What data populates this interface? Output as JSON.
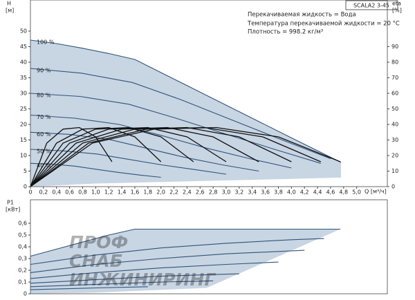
{
  "watermark": [
    "ПРОФ",
    "СНАБ",
    "ИНЖИНИРИНГ"
  ],
  "chart_data": [
    {
      "type": "line",
      "title": "SCALA2 3-45",
      "annotations": [
        "Перекачиваемая жидкость = Вода",
        "Температура перекачиваемой жидкости = 20 °C",
        "Плотность = 998.2 кг/м³"
      ],
      "ylabel": "H",
      "yunit": "[м]",
      "y2label": "eta",
      "y2unit": "[%]",
      "xlabel": "Q [м³/ч]",
      "xlim": [
        0,
        5.47
      ],
      "xticks": [
        0,
        {
          "value": 0.2,
          "label": "0,2"
        },
        {
          "value": 0.4,
          "label": "0,4"
        },
        {
          "value": 0.6,
          "label": "0,6"
        },
        {
          "value": 0.8,
          "label": "0,8"
        },
        {
          "value": 1.0,
          "label": "1,0"
        },
        {
          "value": 1.2,
          "label": "1,2"
        },
        {
          "value": 1.4,
          "label": "1,4"
        },
        {
          "value": 1.6,
          "label": "1,6"
        },
        {
          "value": 1.8,
          "label": "1,8"
        },
        {
          "value": 2.0,
          "label": "2,0"
        },
        {
          "value": 2.2,
          "label": "2,2"
        },
        {
          "value": 2.4,
          "label": "2,4"
        },
        {
          "value": 2.6,
          "label": "2,6"
        },
        {
          "value": 2.8,
          "label": "2,8"
        },
        {
          "value": 3.0,
          "label": "3,0"
        },
        {
          "value": 3.2,
          "label": "3,2"
        },
        {
          "value": 3.4,
          "label": "3,4"
        },
        {
          "value": 3.6,
          "label": "3,6"
        },
        {
          "value": 3.8,
          "label": "3,8"
        },
        {
          "value": 4.0,
          "label": "4,0"
        },
        {
          "value": 4.2,
          "label": "4,2"
        },
        {
          "value": 4.4,
          "label": "4,4"
        },
        {
          "value": 4.6,
          "label": "4,6"
        },
        {
          "value": 4.8,
          "label": "4,8"
        },
        {
          "value": 5.0,
          "label": "5,0"
        }
      ],
      "ylim": [
        0,
        60
      ],
      "yticks": [
        0,
        5,
        10,
        15,
        20,
        25,
        30,
        35,
        40,
        45,
        50
      ],
      "y2lim": [
        0,
        120
      ],
      "y2ticks": [
        0,
        10,
        20,
        30,
        40,
        50,
        60,
        70,
        80,
        90
      ],
      "envelope": {
        "color": "#c8d5e3",
        "x": [
          0,
          0.4,
          0.8,
          1.2,
          1.6,
          4.76,
          4.76,
          4.0,
          3.0,
          2.0,
          1.0,
          0
        ],
        "values": [
          47.1,
          46,
          44.5,
          42.8,
          40.9,
          7.8,
          2.9,
          2.5,
          2.0,
          1.5,
          1.0,
          0
        ]
      },
      "series": [
        {
          "name": "100 %",
          "color": "#2f5379",
          "x": [
            0,
            0.4,
            0.8,
            1.2,
            1.6,
            2.4,
            3.2,
            4.0,
            4.76
          ],
          "values": [
            47.1,
            46,
            44.5,
            42.8,
            40.9,
            32.5,
            24.1,
            15.7,
            7.8
          ]
        },
        {
          "name": "90 %",
          "color": "#2f5379",
          "x": [
            0,
            0.78,
            1.56,
            2.3,
            3.08,
            3.86,
            4.6
          ],
          "values": [
            38,
            36.5,
            33.5,
            28,
            21.5,
            15,
            9
          ]
        },
        {
          "name": "80 %",
          "color": "#2f5379",
          "x": [
            0,
            0.76,
            1.51,
            2.23,
            2.98,
            3.74,
            4.45
          ],
          "values": [
            30,
            29,
            26.5,
            22,
            17,
            12,
            7.5
          ]
        },
        {
          "name": "70 %",
          "color": "#2f5379",
          "x": [
            0,
            0.68,
            1.36,
            2.0,
            2.68,
            3.36,
            4.0
          ],
          "values": [
            23,
            22,
            20,
            16.5,
            12.5,
            9,
            6
          ]
        },
        {
          "name": "60 %",
          "color": "#2f5379",
          "x": [
            0,
            0.6,
            1.2,
            1.75,
            2.35,
            2.94,
            3.5
          ],
          "values": [
            17.5,
            16.8,
            15.2,
            12.5,
            9.5,
            7,
            5
          ]
        },
        {
          "name": "50 %",
          "color": "#2f5379",
          "x": [
            0,
            0.51,
            1.02,
            1.5,
            2.01,
            2.52,
            3.0
          ],
          "values": [
            12,
            11.5,
            10.5,
            8.8,
            7,
            5.5,
            4
          ]
        },
        {
          "name": "40 %",
          "color": "#2f5379",
          "x": [
            0,
            0.34,
            0.68,
            1.0,
            1.34,
            1.68,
            2.0
          ],
          "values": [
            7.5,
            7.2,
            6.6,
            5.6,
            4.6,
            3.7,
            3
          ]
        },
        {
          "axis": "y2",
          "color": "#111111",
          "x": [
            0,
            0.25,
            0.5,
            0.75,
            1.0,
            1.25
          ],
          "values": [
            0,
            28,
            37,
            38,
            32,
            16
          ]
        },
        {
          "axis": "y2",
          "color": "#111111",
          "x": [
            0,
            0.4,
            0.8,
            1.2,
            1.6,
            2.0
          ],
          "values": [
            0,
            28,
            37,
            38,
            32,
            16
          ]
        },
        {
          "axis": "y2",
          "color": "#111111",
          "x": [
            0,
            0.5,
            1.0,
            1.5,
            2.0,
            2.5
          ],
          "values": [
            0,
            28,
            37,
            38,
            32,
            16
          ]
        },
        {
          "axis": "y2",
          "color": "#111111",
          "x": [
            0,
            0.6,
            1.2,
            1.8,
            2.4,
            3.0
          ],
          "values": [
            0,
            28,
            37,
            38,
            32,
            16
          ]
        },
        {
          "axis": "y2",
          "color": "#111111",
          "x": [
            0,
            0.7,
            1.4,
            2.1,
            2.8,
            3.5
          ],
          "values": [
            0,
            28,
            37,
            38,
            32,
            16
          ]
        },
        {
          "axis": "y2",
          "color": "#111111",
          "x": [
            0,
            0.8,
            1.6,
            2.4,
            3.2,
            4.0
          ],
          "values": [
            0,
            28,
            37,
            38,
            32,
            16
          ]
        },
        {
          "axis": "y2",
          "color": "#111111",
          "x": [
            0,
            0.89,
            1.78,
            2.67,
            3.56,
            4.45
          ],
          "values": [
            0,
            28,
            37,
            38,
            32,
            16
          ]
        },
        {
          "axis": "y2",
          "color": "#111111",
          "x": [
            0,
            0.95,
            1.9,
            2.85,
            3.8,
            4.75
          ],
          "values": [
            0,
            28,
            37,
            38,
            32,
            16
          ]
        }
      ]
    },
    {
      "type": "line",
      "ylabel": "P1",
      "yunit": "[кВт]",
      "xlim": [
        0,
        5.47
      ],
      "ylim": [
        0,
        0.8
      ],
      "yticks": [
        0,
        {
          "value": 0.1,
          "label": "0,1"
        },
        {
          "value": 0.2,
          "label": "0,2"
        },
        {
          "value": 0.3,
          "label": "0,3"
        },
        {
          "value": 0.4,
          "label": "0,4"
        },
        {
          "value": 0.5,
          "label": "0,5"
        },
        {
          "value": 0.6,
          "label": "0,6"
        }
      ],
      "envelope": {
        "color": "#c8d5e3",
        "x": [
          0,
          0.4,
          0.8,
          1.2,
          1.6,
          4.75,
          2.7,
          1.0,
          0
        ],
        "values": [
          0.32,
          0.38,
          0.44,
          0.5,
          0.55,
          0.55,
          0.05,
          0.01,
          0
        ]
      },
      "series": [
        {
          "color": "#2f5379",
          "x": [
            0,
            0.4,
            0.8,
            1.2,
            1.6,
            4.75
          ],
          "values": [
            0.32,
            0.38,
            0.44,
            0.5,
            0.55,
            0.55
          ]
        },
        {
          "color": "#2f5379",
          "x": [
            0,
            1.0,
            2.0,
            3.0,
            4.0,
            4.5
          ],
          "values": [
            0.25,
            0.33,
            0.39,
            0.43,
            0.46,
            0.47
          ]
        },
        {
          "color": "#2f5379",
          "x": [
            0,
            1,
            2,
            3,
            4.2
          ],
          "values": [
            0.18,
            0.25,
            0.3,
            0.34,
            0.37
          ]
        },
        {
          "color": "#2f5379",
          "x": [
            0,
            1,
            2,
            3,
            3.8
          ],
          "values": [
            0.13,
            0.18,
            0.22,
            0.25,
            0.27
          ]
        },
        {
          "color": "#2f5379",
          "x": [
            0,
            1,
            2,
            3.2
          ],
          "values": [
            0.09,
            0.12,
            0.15,
            0.17
          ]
        },
        {
          "color": "#2f5379",
          "x": [
            0,
            1,
            2,
            2.8
          ],
          "values": [
            0.06,
            0.08,
            0.1,
            0.11
          ]
        },
        {
          "color": "#2f5379",
          "x": [
            0,
            1,
            1.8
          ],
          "values": [
            0.035,
            0.05,
            0.06
          ]
        }
      ]
    }
  ]
}
